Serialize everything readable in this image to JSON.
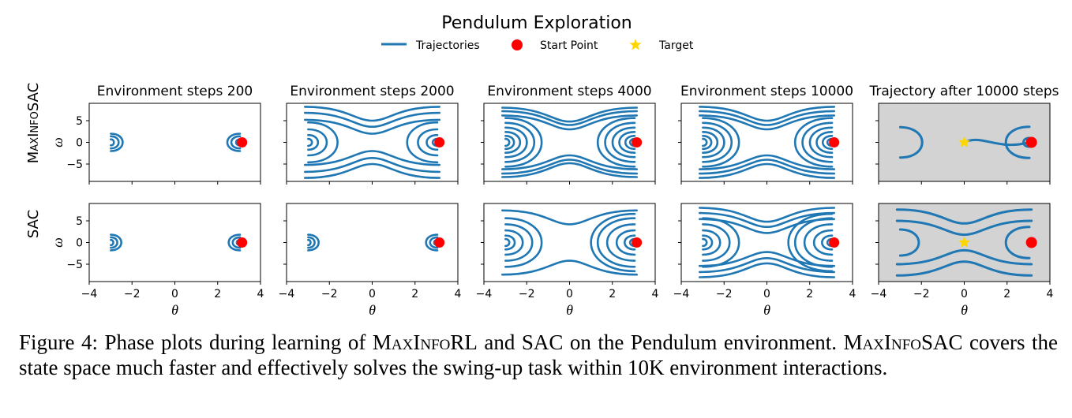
{
  "figure": {
    "title": "Pendulum Exploration",
    "legend": [
      {
        "name": "Trajectories",
        "marker": "line",
        "color": "#1f77b4"
      },
      {
        "name": "Start Point",
        "marker": "circle",
        "color": "#ff0000"
      },
      {
        "name": "Target",
        "marker": "star",
        "color": "#ffd700"
      }
    ],
    "row_labels": [
      "MaxInfoSAC",
      "SAC"
    ],
    "col_titles": [
      "Environment steps 200",
      "Environment steps 2000",
      "Environment steps 4000",
      "Environment steps 10000",
      "Trajectory after 10000 steps"
    ],
    "xlabel": "θ",
    "ylabel": "ω",
    "xticks": [
      "−4",
      "−2",
      "0",
      "2",
      "4"
    ],
    "yticks": [
      "5",
      "0",
      "−5"
    ]
  },
  "chart_data": {
    "type": "line",
    "title": "Pendulum Exploration",
    "xlabel": "θ",
    "ylabel": "ω",
    "xlim": [
      -4,
      4
    ],
    "ylim": [
      -9,
      9
    ],
    "rows": [
      "MaxInfoSAC",
      "SAC"
    ],
    "columns": [
      "Environment steps 200",
      "Environment steps 2000",
      "Environment steps 4000",
      "Environment steps 10000",
      "Trajectory after 10000 steps"
    ],
    "start_point": {
      "theta": 3.14,
      "omega": 0
    },
    "target": {
      "theta": 0,
      "omega": 0
    },
    "target_panel_background": "#d3d3d3",
    "trajectory_color": "#1f77b4",
    "panels": [
      {
        "row": 0,
        "col": 0,
        "orbits_left": [
          0.7,
          1.4,
          2.0
        ],
        "orbits_right": [
          0.7,
          1.4,
          2.0
        ],
        "bands": [],
        "target": false
      },
      {
        "row": 0,
        "col": 1,
        "orbits_left": [
          0.8,
          1.7,
          3.0,
          4.6
        ],
        "orbits_right": [
          0.8,
          1.7,
          3.0,
          4.6
        ],
        "bands": [
          5.2,
          6.8,
          8.2
        ],
        "target": false
      },
      {
        "row": 0,
        "col": 2,
        "orbits_left": [
          0.8,
          1.5,
          2.4,
          3.4,
          4.5,
          5.6
        ],
        "orbits_right": [
          0.8,
          1.5,
          2.4,
          3.4,
          4.5,
          5.6
        ],
        "bands": [
          6.2,
          7.2,
          8.0
        ],
        "target": false
      },
      {
        "row": 0,
        "col": 3,
        "orbits_left": [
          0.8,
          1.5,
          2.4,
          3.4,
          4.5,
          5.6
        ],
        "orbits_right": [
          0.8,
          1.5,
          2.4,
          3.4,
          4.5,
          5.6
        ],
        "bands": [
          6.2,
          7.2,
          8.2
        ],
        "target": false
      },
      {
        "row": 0,
        "col": 4,
        "orbits_left": [
          3.5
        ],
        "orbits_right": [
          1.0,
          3.6
        ],
        "bands": [],
        "target": true
      },
      {
        "row": 1,
        "col": 0,
        "orbits_left": [
          0.6,
          1.2,
          1.8
        ],
        "orbits_right": [
          0.6,
          1.2,
          1.8
        ],
        "bands": [],
        "target": false
      },
      {
        "row": 1,
        "col": 1,
        "orbits_left": [
          0.6,
          1.2,
          1.8
        ],
        "orbits_right": [
          0.6,
          1.2,
          1.8
        ],
        "bands": [],
        "target": false
      },
      {
        "row": 1,
        "col": 2,
        "orbits_left": [
          0.8,
          1.6,
          2.8,
          4.2,
          5.6
        ],
        "orbits_right": [
          0.8,
          1.6,
          2.8,
          4.2,
          5.6,
          6.6
        ],
        "bands": [
          7.4
        ],
        "target": false
      },
      {
        "row": 1,
        "col": 3,
        "orbits_left": [
          0.8,
          1.6,
          2.8,
          4.2,
          5.6
        ],
        "orbits_right": [
          0.8,
          1.6,
          2.8,
          4.2,
          5.6,
          6.6
        ],
        "bands": [
          5.4,
          6.8,
          8.0
        ],
        "target": false
      },
      {
        "row": 1,
        "col": 4,
        "orbits_left": [
          3.0
        ],
        "orbits_right": [
          3.6
        ],
        "bands": [
          5.0,
          7.6
        ],
        "target": true
      }
    ]
  },
  "caption": {
    "part1": "Figure 4:  Phase plots during learning of ",
    "name1": "MaxInfoRL",
    "part2": " and SAC on the Pendulum environment. ",
    "name2": "MaxInfoSAC",
    "part3": " covers the state space much faster and effectively solves the swing-up task within 10K environment interactions."
  }
}
